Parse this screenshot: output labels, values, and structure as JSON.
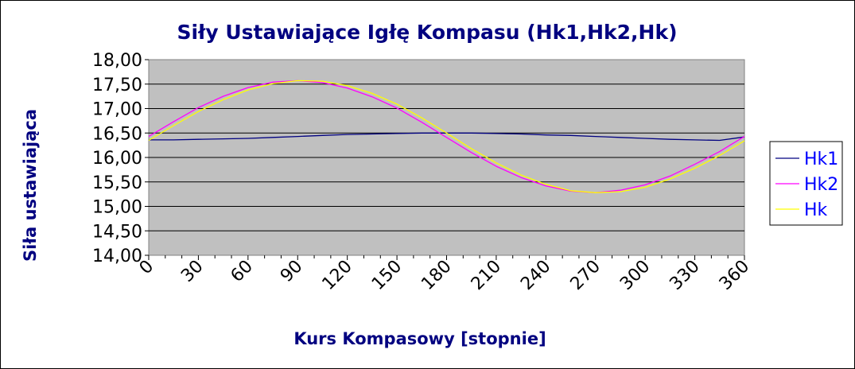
{
  "chart_data": {
    "type": "line",
    "title": "Siły Ustawiające Igłę Kompasu (Hk1,Hk2,Hk)",
    "xlabel": "Kurs Kompasowy  [stopnie]",
    "ylabel": "Siła ustawiająca",
    "xlim": [
      0,
      360
    ],
    "ylim": [
      14,
      18
    ],
    "x_ticks": [
      0,
      30,
      60,
      90,
      120,
      150,
      180,
      210,
      240,
      270,
      300,
      330,
      360
    ],
    "y_ticks": [
      "14,00",
      "14,50",
      "15,00",
      "15,50",
      "16,00",
      "16,50",
      "17,00",
      "17,50",
      "18,00"
    ],
    "y_tick_values": [
      14,
      14.5,
      15,
      15.5,
      16,
      16.5,
      17,
      17.5,
      18
    ],
    "grid": "horizontal",
    "plot_background": "#c0c0c0",
    "legend_position": "right",
    "x": [
      0,
      15,
      30,
      45,
      60,
      75,
      90,
      105,
      120,
      135,
      150,
      165,
      180,
      195,
      210,
      225,
      240,
      255,
      270,
      285,
      300,
      315,
      330,
      345,
      360
    ],
    "series": [
      {
        "name": "Hk1",
        "color": "#000080",
        "values": [
          16.36,
          16.36,
          16.37,
          16.38,
          16.39,
          16.41,
          16.43,
          16.45,
          16.47,
          16.48,
          16.49,
          16.5,
          16.5,
          16.5,
          16.49,
          16.48,
          16.46,
          16.45,
          16.43,
          16.41,
          16.39,
          16.37,
          16.36,
          16.35,
          16.42
        ]
      },
      {
        "name": "Hk2",
        "color": "#ff00ff",
        "values": [
          16.43,
          16.73,
          17.02,
          17.25,
          17.43,
          17.54,
          17.57,
          17.53,
          17.42,
          17.24,
          17.01,
          16.72,
          16.41,
          16.1,
          15.82,
          15.59,
          15.42,
          15.31,
          15.28,
          15.33,
          15.44,
          15.62,
          15.86,
          16.12,
          16.43
        ]
      },
      {
        "name": "Hk",
        "color": "#ffff00",
        "values": [
          16.35,
          16.65,
          16.94,
          17.18,
          17.38,
          17.51,
          17.57,
          17.56,
          17.47,
          17.31,
          17.09,
          16.81,
          16.5,
          16.18,
          15.89,
          15.64,
          15.45,
          15.32,
          15.28,
          15.3,
          15.39,
          15.56,
          15.78,
          16.04,
          16.34
        ]
      }
    ]
  }
}
